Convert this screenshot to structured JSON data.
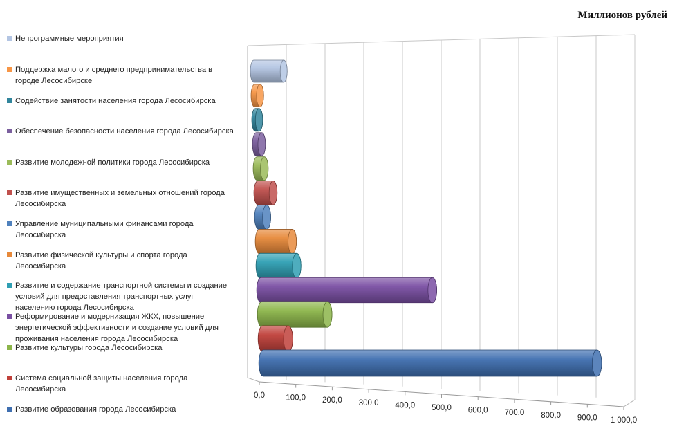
{
  "unit_label": "Миллионов рублей",
  "chart_data": {
    "type": "bar",
    "orientation": "horizontal",
    "three_d": true,
    "xlim": [
      0,
      1000
    ],
    "xticks": [
      "0,0",
      "100,0",
      "200,0",
      "300,0",
      "400,0",
      "500,0",
      "600,0",
      "700,0",
      "800,0",
      "900,0",
      "1 000,0"
    ],
    "grid": true,
    "legend_position": "left",
    "series": [
      {
        "name": "Непрограммные мероприятия",
        "value": 82,
        "color": "#b3c5e3"
      },
      {
        "name": "Поддержка малого и среднего предпринимательства в городе Лесосибирске",
        "value": 15,
        "color": "#f79646"
      },
      {
        "name": "Содействие занятости населения города Лесосибирска",
        "value": 10,
        "color": "#31859c"
      },
      {
        "name": "Обеспечение безопасности населения города Лесосибирска",
        "value": 15,
        "color": "#7b5f9e"
      },
      {
        "name": "Развитие молодежной политики города Лесосибирска",
        "value": 20,
        "color": "#9bbb59"
      },
      {
        "name": "Развитие имущественных и земельных отношений города Лесосибирска",
        "value": 42,
        "color": "#c0504d"
      },
      {
        "name": "Управление муниципальными финансами города Лесосибирска",
        "value": 22,
        "color": "#4f81bd"
      },
      {
        "name": "Развитие физической культуры и спорта города Лесосибирска",
        "value": 90,
        "color": "#e7893a"
      },
      {
        "name": "Развитие и содержание транспортной системы и создание условий для предоставления транспортных услуг населению города Лесосибирска",
        "value": 100,
        "color": "#2f9fb3"
      },
      {
        "name": "Реформирование и модернизация ЖКХ, повышение энергетической эффективности и создание условий для проживания населения города Лесосибирска",
        "value": 470,
        "color": "#7a4fa3"
      },
      {
        "name": "Развитие культуры города Лесосибирска",
        "value": 180,
        "color": "#8cb54a"
      },
      {
        "name": "Система социальной защиты населения города Лесосибирска",
        "value": 70,
        "color": "#c0403a"
      },
      {
        "name": "Развитие образования города Лесосибирска",
        "value": 915,
        "color": "#3f6fb0"
      }
    ]
  }
}
